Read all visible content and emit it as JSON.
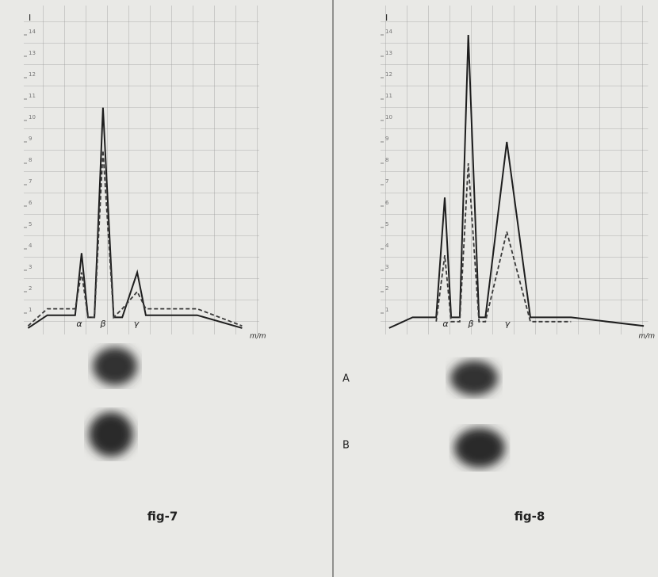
{
  "chart_data": [
    {
      "type": "line",
      "title": "fig-7",
      "ylabel": "I",
      "xlabel": "m/m",
      "annotations": [
        "α",
        "β",
        "γ"
      ],
      "x": [
        0.2,
        1.1,
        2.4,
        2.7,
        3.0,
        3.3,
        3.7,
        4.2,
        4.6,
        5.3,
        5.7,
        8.1,
        10.2
      ],
      "xlim": [
        0,
        11
      ],
      "ylim": [
        0,
        15
      ],
      "yticks": [
        1,
        2,
        3,
        4,
        5,
        6,
        7,
        8,
        9,
        10,
        11,
        12,
        13,
        14
      ],
      "series": [
        {
          "color": "#1e1e1e",
          "line_style": "solid",
          "values": [
            0.3,
            0.9,
            0.9,
            3.8,
            0.8,
            0.8,
            10.6,
            0.8,
            0.8,
            2.9,
            0.9,
            0.9,
            0.3
          ]
        },
        {
          "color": "#3a3a3a",
          "line_style": "dashed",
          "values": [
            0.4,
            1.2,
            1.2,
            2.9,
            0.8,
            0.8,
            8.6,
            0.8,
            1.2,
            2.0,
            1.2,
            1.2,
            0.4
          ]
        }
      ]
    },
    {
      "type": "line",
      "title": "fig-8",
      "ylabel": "I",
      "xlabel": "m/m",
      "annotations": [
        "α",
        "β",
        "γ"
      ],
      "x": [
        0.4,
        1.5,
        2.6,
        3.0,
        3.3,
        3.7,
        4.1,
        4.6,
        4.9,
        5.9,
        7.0,
        8.9,
        12.3
      ],
      "xlim": [
        0,
        12.5
      ],
      "ylim": [
        0,
        15
      ],
      "yticks": [
        1,
        2,
        3,
        4,
        5,
        6,
        7,
        8,
        9,
        10,
        11,
        12,
        13,
        14
      ],
      "series": [
        {
          "color": "#1e1e1e",
          "line_style": "solid",
          "values": [
            0.3,
            0.8,
            0.8,
            6.4,
            0.8,
            0.8,
            14.0,
            0.8,
            0.8,
            9.0,
            0.8,
            0.8,
            0.4
          ]
        },
        {
          "color": "#3a3a3a",
          "line_style": "dashed",
          "values": [
            null,
            null,
            0.6,
            3.7,
            0.6,
            0.6,
            8.0,
            0.6,
            0.6,
            4.8,
            0.6,
            0.6,
            null
          ]
        }
      ]
    }
  ],
  "sample_labels": [
    "A",
    "B"
  ]
}
